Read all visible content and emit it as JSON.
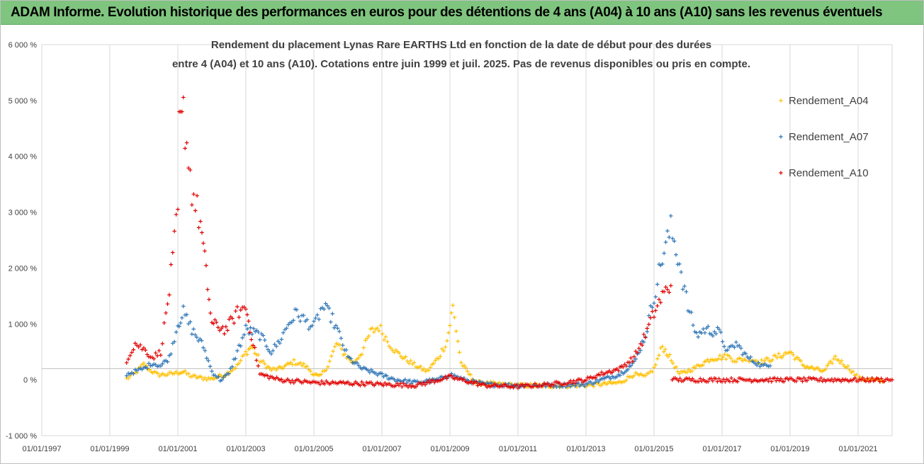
{
  "banner": {
    "title": "ADAM Informe. Evolution historique des performances en euros pour des détentions de 4 ans (A04) à 10 ans (A10) sans les revenus éventuels"
  },
  "chart_data": {
    "type": "scatter",
    "title_lines": [
      "Rendement du placement Lynas Rare EARTHS Ltd en fonction de la date de début pour des durées",
      "entre 4 (A04) et 10 ans (A10). Cotations entre juin 1999 et juil. 2025. Pas de revenus disponibles ou pris en compte."
    ],
    "xlabel": "",
    "ylabel": "",
    "x_ticks": [
      "01/01/1997",
      "01/01/1999",
      "01/01/2001",
      "01/01/2003",
      "01/01/2005",
      "01/01/2007",
      "01/01/2009",
      "01/01/2011",
      "01/01/2013",
      "01/01/2015",
      "01/01/2017",
      "01/01/2019",
      "01/01/2021"
    ],
    "y_ticks": [
      "-1 000 %",
      "0 %",
      "1 000 %",
      "2 000 %",
      "3 000 %",
      "4 000 %",
      "5 000 %",
      "6 000 %"
    ],
    "xlim": [
      "1997-01-01",
      "2022-01-01"
    ],
    "ylim": [
      -1000,
      6000
    ],
    "y_unit": "%",
    "grid": "vertical",
    "marker": "+",
    "legend_position": "right",
    "series": [
      {
        "name": "Rendement_A04",
        "color": "#ffc000",
        "points": [
          [
            "1999-07-01",
            20
          ],
          [
            "1999-10-01",
            120
          ],
          [
            "2000-01-01",
            280
          ],
          [
            "2000-03-01",
            180
          ],
          [
            "2000-06-01",
            90
          ],
          [
            "2000-10-01",
            100
          ],
          [
            "2001-01-01",
            130
          ],
          [
            "2001-03-01",
            140
          ],
          [
            "2001-06-01",
            60
          ],
          [
            "2001-10-01",
            30
          ],
          [
            "2002-01-01",
            20
          ],
          [
            "2002-06-01",
            100
          ],
          [
            "2002-10-01",
            250
          ],
          [
            "2003-01-01",
            480
          ],
          [
            "2003-03-01",
            600
          ],
          [
            "2003-06-01",
            350
          ],
          [
            "2003-10-01",
            180
          ],
          [
            "2004-01-01",
            200
          ],
          [
            "2004-06-01",
            320
          ],
          [
            "2004-10-01",
            250
          ],
          [
            "2005-01-01",
            100
          ],
          [
            "2005-03-01",
            50
          ],
          [
            "2005-06-01",
            250
          ],
          [
            "2005-09-01",
            650
          ],
          [
            "2005-12-01",
            450
          ],
          [
            "2006-03-01",
            300
          ],
          [
            "2006-06-01",
            500
          ],
          [
            "2006-09-01",
            850
          ],
          [
            "2006-12-01",
            950
          ],
          [
            "2007-03-01",
            700
          ],
          [
            "2007-06-01",
            500
          ],
          [
            "2007-10-01",
            350
          ],
          [
            "2008-01-01",
            250
          ],
          [
            "2008-05-01",
            150
          ],
          [
            "2008-09-01",
            400
          ],
          [
            "2008-12-01",
            700
          ],
          [
            "2009-02-01",
            1300
          ],
          [
            "2009-05-01",
            300
          ],
          [
            "2009-10-01",
            -50
          ],
          [
            "2010-06-01",
            -80
          ],
          [
            "2011-01-01",
            -100
          ],
          [
            "2012-01-01",
            -110
          ],
          [
            "2013-01-01",
            -100
          ],
          [
            "2014-01-01",
            -50
          ],
          [
            "2014-06-01",
            100
          ],
          [
            "2014-10-01",
            50
          ],
          [
            "2015-01-01",
            200
          ],
          [
            "2015-04-01",
            600
          ],
          [
            "2015-06-01",
            450
          ],
          [
            "2015-10-01",
            100
          ],
          [
            "2016-03-01",
            200
          ],
          [
            "2016-09-01",
            380
          ],
          [
            "2017-03-01",
            420
          ],
          [
            "2017-06-01",
            350
          ],
          [
            "2017-10-01",
            380
          ],
          [
            "2018-03-01",
            320
          ],
          [
            "2018-09-01",
            420
          ],
          [
            "2019-01-01",
            500
          ],
          [
            "2019-06-01",
            250
          ],
          [
            "2020-01-01",
            150
          ],
          [
            "2020-05-01",
            400
          ],
          [
            "2020-10-01",
            200
          ],
          [
            "2021-01-01",
            30
          ],
          [
            "2021-10-01",
            -30
          ]
        ]
      },
      {
        "name": "Rendement_A07",
        "color": "#2e75b6",
        "points": [
          [
            "1999-07-01",
            100
          ],
          [
            "1999-10-01",
            150
          ],
          [
            "2000-01-01",
            200
          ],
          [
            "2000-04-01",
            300
          ],
          [
            "2000-07-01",
            250
          ],
          [
            "2000-10-01",
            400
          ],
          [
            "2001-01-01",
            1000
          ],
          [
            "2001-03-01",
            1200
          ],
          [
            "2001-06-01",
            900
          ],
          [
            "2001-10-01",
            600
          ],
          [
            "2002-01-01",
            150
          ],
          [
            "2002-04-01",
            0
          ],
          [
            "2002-07-01",
            100
          ],
          [
            "2002-10-01",
            500
          ],
          [
            "2003-01-01",
            900
          ],
          [
            "2003-06-01",
            800
          ],
          [
            "2003-10-01",
            500
          ],
          [
            "2004-01-01",
            700
          ],
          [
            "2004-04-01",
            1000
          ],
          [
            "2004-07-01",
            1200
          ],
          [
            "2004-10-01",
            1050
          ],
          [
            "2005-01-01",
            950
          ],
          [
            "2005-04-01",
            1300
          ],
          [
            "2005-07-01",
            1150
          ],
          [
            "2005-10-01",
            800
          ],
          [
            "2006-01-01",
            400
          ],
          [
            "2006-06-01",
            200
          ],
          [
            "2006-12-01",
            100
          ],
          [
            "2007-06-01",
            0
          ],
          [
            "2008-01-01",
            -50
          ],
          [
            "2008-09-01",
            0
          ],
          [
            "2009-01-01",
            100
          ],
          [
            "2009-06-01",
            0
          ],
          [
            "2010-01-01",
            -80
          ],
          [
            "2011-01-01",
            -100
          ],
          [
            "2012-01-01",
            -100
          ],
          [
            "2013-01-01",
            -80
          ],
          [
            "2014-01-01",
            100
          ],
          [
            "2014-06-01",
            300
          ],
          [
            "2014-10-01",
            800
          ],
          [
            "2015-01-01",
            1500
          ],
          [
            "2015-04-01",
            2200
          ],
          [
            "2015-07-01",
            2700
          ],
          [
            "2015-10-01",
            2100
          ],
          [
            "2016-01-01",
            1300
          ],
          [
            "2016-04-01",
            800
          ],
          [
            "2016-07-01",
            900
          ],
          [
            "2016-12-01",
            850
          ],
          [
            "2017-03-01",
            500
          ],
          [
            "2017-06-01",
            650
          ],
          [
            "2017-10-01",
            400
          ],
          [
            "2018-03-01",
            250
          ],
          [
            "2018-06-01",
            250
          ]
        ]
      },
      {
        "name": "Rendement_A10",
        "color": "#e00000",
        "points": [
          [
            "1999-07-01",
            350
          ],
          [
            "1999-10-01",
            650
          ],
          [
            "2000-01-01",
            550
          ],
          [
            "2000-04-01",
            400
          ],
          [
            "2000-07-01",
            500
          ],
          [
            "2000-10-01",
            1600
          ],
          [
            "2001-01-01",
            3000
          ],
          [
            "2001-03-01",
            4800
          ],
          [
            "2001-06-01",
            3400
          ],
          [
            "2001-09-01",
            2800
          ],
          [
            "2001-11-01",
            1900
          ],
          [
            "2002-01-01",
            1000
          ],
          [
            "2002-06-01",
            900
          ],
          [
            "2002-10-01",
            1200
          ],
          [
            "2003-01-01",
            1300
          ],
          [
            "2003-03-01",
            800
          ],
          [
            "2003-06-01",
            100
          ],
          [
            "2004-01-01",
            0
          ],
          [
            "2005-01-01",
            -50
          ],
          [
            "2006-01-01",
            -60
          ],
          [
            "2007-01-01",
            -80
          ],
          [
            "2008-01-01",
            -100
          ],
          [
            "2009-01-01",
            50
          ],
          [
            "2010-01-01",
            -100
          ],
          [
            "2011-01-01",
            -120
          ],
          [
            "2012-01-01",
            -80
          ],
          [
            "2013-01-01",
            0
          ],
          [
            "2013-06-01",
            100
          ],
          [
            "2014-01-01",
            200
          ],
          [
            "2014-06-01",
            400
          ],
          [
            "2014-10-01",
            800
          ],
          [
            "2015-01-01",
            1200
          ],
          [
            "2015-04-01",
            1500
          ],
          [
            "2015-07-01",
            1700
          ],
          [
            "2015-08-01",
            0
          ],
          [
            "2017-01-01",
            0
          ],
          [
            "2019-01-01",
            0
          ],
          [
            "2021-01-01",
            0
          ],
          [
            "2022-01-01",
            0
          ]
        ]
      }
    ]
  }
}
